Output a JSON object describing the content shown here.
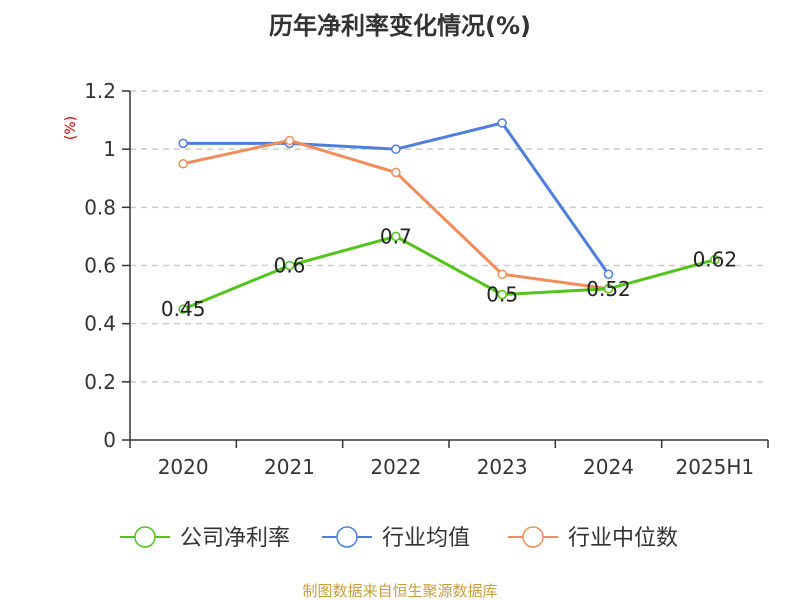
{
  "chart_data": {
    "type": "line",
    "title": "历年净利率变化情况(%)",
    "ylabel": "(%)",
    "categories": [
      "2020",
      "2021",
      "2022",
      "2023",
      "2024",
      "2025H1"
    ],
    "ylim": [
      0,
      1.2
    ],
    "yticks": [
      "0",
      "0.2",
      "0.4",
      "0.6",
      "0.8",
      "1",
      "1.2"
    ],
    "grid": true,
    "legend_position": "bottom",
    "series": [
      {
        "name": "公司净利率",
        "color": "#52c41a",
        "values": [
          0.45,
          0.6,
          0.7,
          0.5,
          0.52,
          0.62
        ],
        "data_labels": [
          "0.45",
          "0.6",
          "0.7",
          "0.5",
          "0.52",
          "0.62"
        ]
      },
      {
        "name": "行业均值",
        "color": "#4e7fdf",
        "values": [
          1.02,
          1.02,
          1.0,
          1.09,
          0.57,
          null
        ]
      },
      {
        "name": "行业中位数",
        "color": "#f28c5a",
        "values": [
          0.95,
          1.03,
          0.92,
          0.57,
          0.52,
          null
        ]
      }
    ]
  },
  "colors": {
    "unit_label": "#cc0000",
    "source_text": "#c8a040",
    "grid": "#cccccc",
    "axis": "#333333"
  },
  "source": "制图数据来自恒生聚源数据库"
}
